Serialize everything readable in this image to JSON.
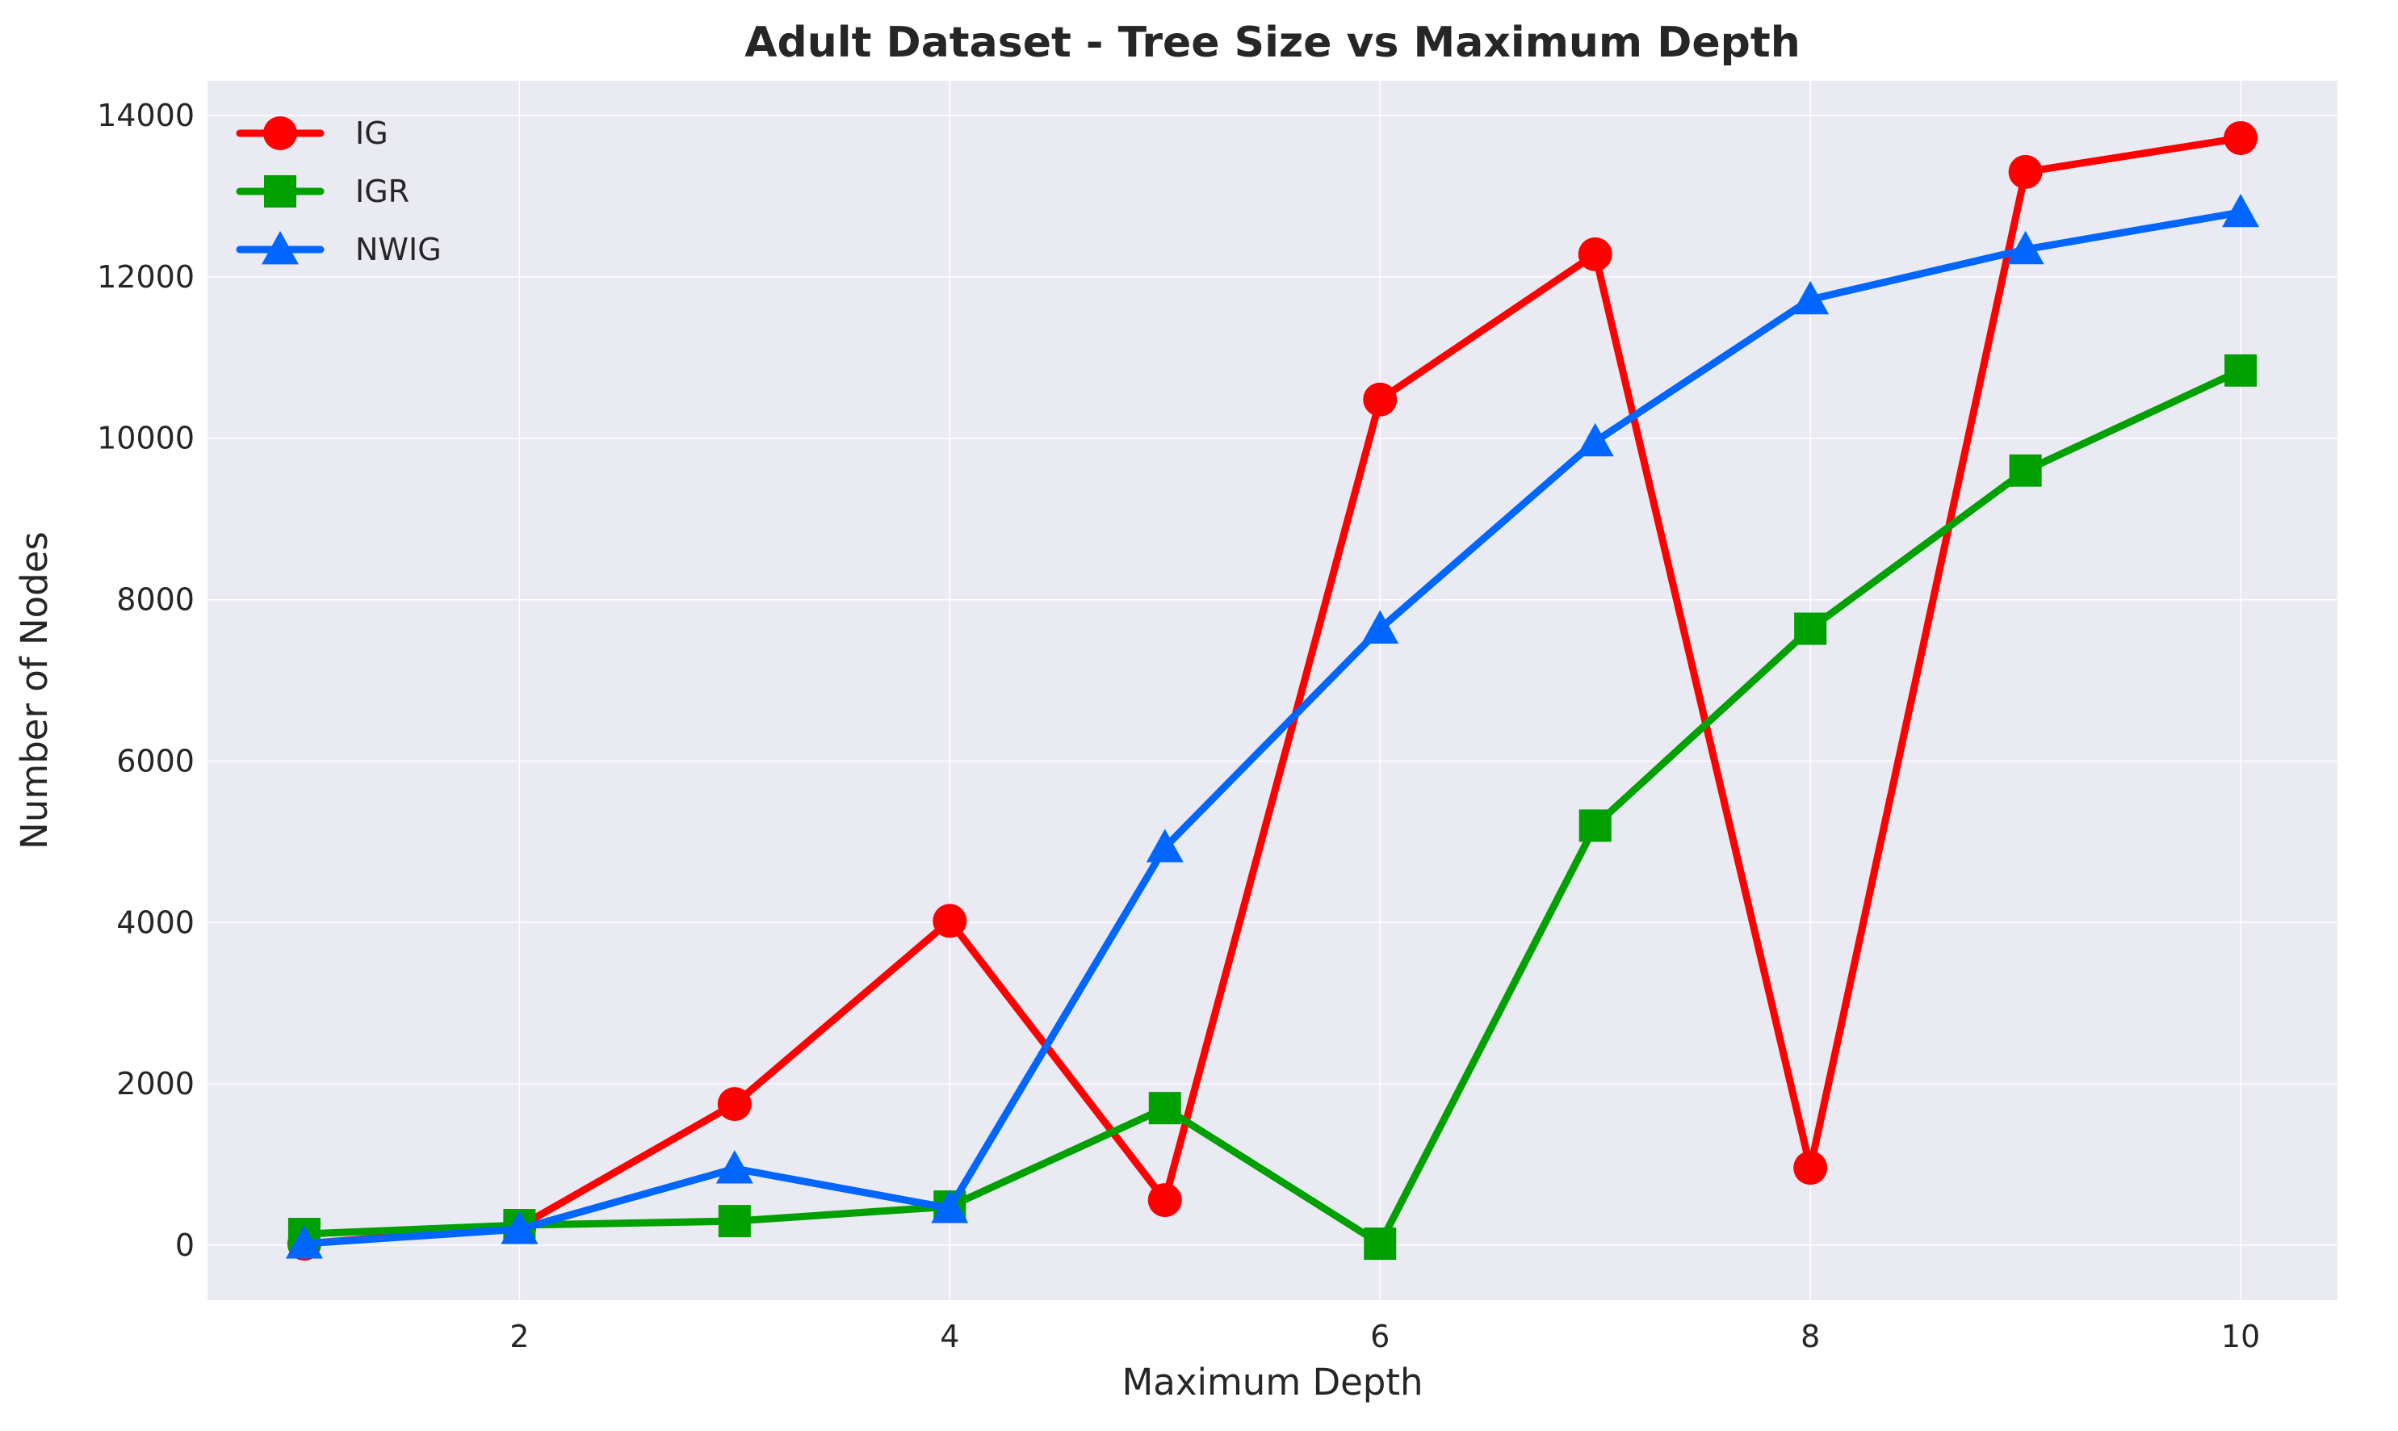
{
  "chart_data": {
    "type": "line",
    "title": "Adult Dataset - Tree Size vs Maximum Depth",
    "xlabel": "Maximum Depth",
    "ylabel": "Number of Nodes",
    "x": [
      1,
      2,
      3,
      4,
      5,
      6,
      7,
      8,
      9,
      10
    ],
    "xlim": [
      0.55,
      10.45
    ],
    "ylim": [
      -680,
      14430
    ],
    "xticks": [
      2,
      4,
      6,
      8,
      10
    ],
    "yticks": [
      0,
      2000,
      4000,
      6000,
      8000,
      10000,
      12000,
      14000
    ],
    "grid": true,
    "legend_position": "top-left",
    "series": [
      {
        "name": "IG",
        "color": "#ff0000",
        "marker": "circle",
        "values": [
          20,
          230,
          1750,
          4020,
          560,
          10480,
          12280,
          960,
          13300,
          13720
        ]
      },
      {
        "name": "IGR",
        "color": "#00a000",
        "marker": "square",
        "values": [
          140,
          250,
          300,
          480,
          1700,
          20,
          5200,
          7640,
          9600,
          10840
        ]
      },
      {
        "name": "NWIG",
        "color": "#0066ff",
        "marker": "triangle",
        "values": [
          20,
          200,
          950,
          460,
          4930,
          7640,
          9960,
          11720,
          12340,
          12800
        ]
      }
    ]
  }
}
